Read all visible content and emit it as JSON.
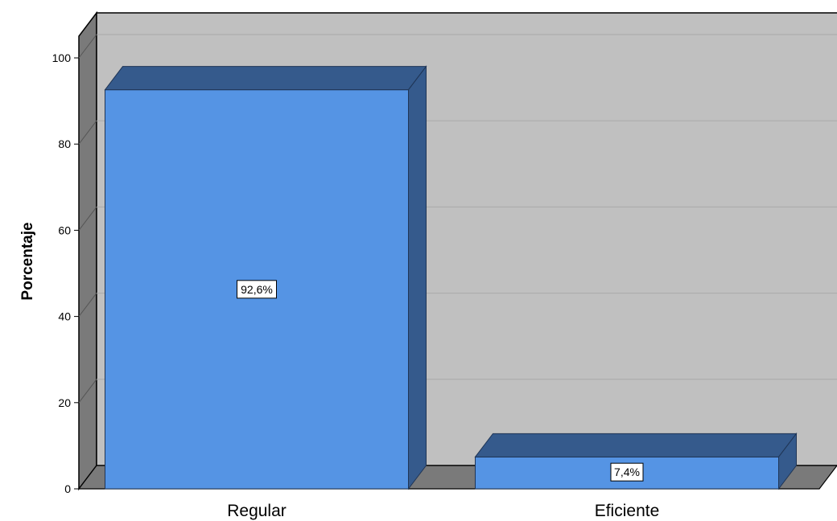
{
  "chart_data": {
    "type": "bar",
    "style": "3d",
    "categories": [
      "Regular",
      "Eficiente"
    ],
    "values": [
      92.6,
      7.4
    ],
    "data_labels": [
      "92,6%",
      "7,4%"
    ],
    "title": "",
    "xlabel": "",
    "ylabel": "Porcentaje",
    "ylim": [
      0,
      100
    ],
    "yticks": [
      0,
      20,
      40,
      60,
      80,
      100
    ],
    "grid": true,
    "legend": "none"
  },
  "colors": {
    "bar_front": "#5594e4",
    "bar_top": "#355a8c",
    "bar_side": "#355a8c",
    "back_wall": "#c0c0c0",
    "side_wall": "#7a7a7a",
    "floor": "#7a7a7a",
    "grid": "#a9a9a9"
  }
}
